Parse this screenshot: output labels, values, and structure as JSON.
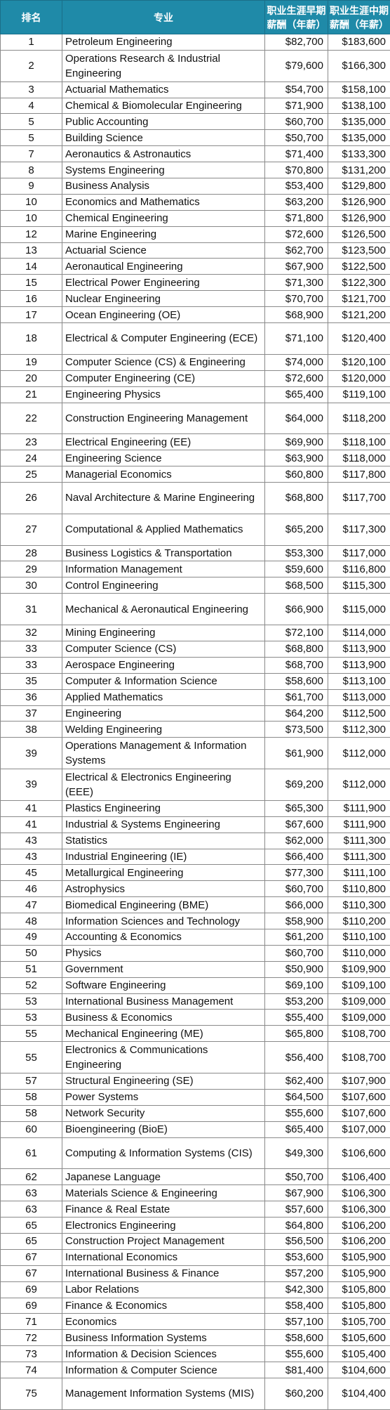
{
  "headers": {
    "rank": "排名",
    "major": "专业",
    "early": "职业生涯早期薪酬（年薪）",
    "mid": "职业生涯中期薪酬（年薪）"
  },
  "rows": [
    {
      "rank": "1",
      "major": "Petroleum Engineering",
      "early": "$82,700",
      "mid": "$183,600"
    },
    {
      "rank": "2",
      "major": "Operations Research & Industrial Engineering",
      "early": "$79,600",
      "mid": "$166,300",
      "tall": true
    },
    {
      "rank": "3",
      "major": "Actuarial Mathematics",
      "early": "$54,700",
      "mid": "$158,100"
    },
    {
      "rank": "4",
      "major": "Chemical & Biomolecular Engineering",
      "early": "$71,900",
      "mid": "$138,100"
    },
    {
      "rank": "5",
      "major": "Public Accounting",
      "early": "$60,700",
      "mid": "$135,000"
    },
    {
      "rank": "5",
      "major": "Building Science",
      "early": "$50,700",
      "mid": "$135,000"
    },
    {
      "rank": "7",
      "major": "Aeronautics & Astronautics",
      "early": "$71,400",
      "mid": "$133,300"
    },
    {
      "rank": "8",
      "major": "Systems Engineering",
      "early": "$70,800",
      "mid": "$131,200"
    },
    {
      "rank": "9",
      "major": "Business Analysis",
      "early": "$53,400",
      "mid": "$129,800"
    },
    {
      "rank": "10",
      "major": "Economics and Mathematics",
      "early": "$63,200",
      "mid": "$126,900"
    },
    {
      "rank": "10",
      "major": "Chemical Engineering",
      "early": "$71,800",
      "mid": "$126,900"
    },
    {
      "rank": "12",
      "major": "Marine Engineering",
      "early": "$72,600",
      "mid": "$126,500"
    },
    {
      "rank": "13",
      "major": "Actuarial Science",
      "early": "$62,700",
      "mid": "$123,500"
    },
    {
      "rank": "14",
      "major": "Aeronautical Engineering",
      "early": "$67,900",
      "mid": "$122,500"
    },
    {
      "rank": "15",
      "major": "Electrical Power Engineering",
      "early": "$71,300",
      "mid": "$122,300"
    },
    {
      "rank": "16",
      "major": "Nuclear Engineering",
      "early": "$70,700",
      "mid": "$121,700"
    },
    {
      "rank": "17",
      "major": "Ocean Engineering (OE)",
      "early": "$68,900",
      "mid": "$121,200"
    },
    {
      "rank": "18",
      "major": "Electrical & Computer Engineering (ECE)",
      "early": "$71,100",
      "mid": "$120,400",
      "tall": true
    },
    {
      "rank": "19",
      "major": "Computer Science (CS) & Engineering",
      "early": "$74,000",
      "mid": "$120,100"
    },
    {
      "rank": "20",
      "major": "Computer Engineering (CE)",
      "early": "$72,600",
      "mid": "$120,000"
    },
    {
      "rank": "21",
      "major": "Engineering Physics",
      "early": "$65,400",
      "mid": "$119,100"
    },
    {
      "rank": "22",
      "major": "Construction Engineering Management",
      "early": "$64,000",
      "mid": "$118,200",
      "tall": true
    },
    {
      "rank": "23",
      "major": "Electrical Engineering (EE)",
      "early": "$69,900",
      "mid": "$118,100"
    },
    {
      "rank": "24",
      "major": "Engineering Science",
      "early": "$63,900",
      "mid": "$118,000"
    },
    {
      "rank": "25",
      "major": "Managerial Economics",
      "early": "$60,800",
      "mid": "$117,800"
    },
    {
      "rank": "26",
      "major": "Naval Architecture & Marine Engineering",
      "early": "$68,800",
      "mid": "$117,700",
      "tall": true
    },
    {
      "rank": "27",
      "major": "Computational & Applied Mathematics",
      "early": "$65,200",
      "mid": "$117,300",
      "tall": true
    },
    {
      "rank": "28",
      "major": "Business Logistics & Transportation",
      "early": "$53,300",
      "mid": "$117,000"
    },
    {
      "rank": "29",
      "major": "Information Management",
      "early": "$59,600",
      "mid": "$116,800"
    },
    {
      "rank": "30",
      "major": "Control Engineering",
      "early": "$68,500",
      "mid": "$115,300"
    },
    {
      "rank": "31",
      "major": "Mechanical & Aeronautical Engineering",
      "early": "$66,900",
      "mid": "$115,000",
      "tall": true
    },
    {
      "rank": "32",
      "major": "Mining Engineering",
      "early": "$72,100",
      "mid": "$114,000"
    },
    {
      "rank": "33",
      "major": "Computer Science (CS)",
      "early": "$68,800",
      "mid": "$113,900"
    },
    {
      "rank": "33",
      "major": "Aerospace Engineering",
      "early": "$68,700",
      "mid": "$113,900"
    },
    {
      "rank": "35",
      "major": "Computer & Information Science",
      "early": "$58,600",
      "mid": "$113,100"
    },
    {
      "rank": "36",
      "major": "Applied Mathematics",
      "early": "$61,700",
      "mid": "$113,000"
    },
    {
      "rank": "37",
      "major": "Engineering",
      "early": "$64,200",
      "mid": "$112,500"
    },
    {
      "rank": "38",
      "major": "Welding Engineering",
      "early": "$73,500",
      "mid": "$112,300"
    },
    {
      "rank": "39",
      "major": "Operations Management & Information Systems",
      "early": "$61,900",
      "mid": "$112,000",
      "tall": true
    },
    {
      "rank": "39",
      "major": "Electrical & Electronics Engineering (EEE)",
      "early": "$69,200",
      "mid": "$112,000",
      "tall": true
    },
    {
      "rank": "41",
      "major": "Plastics Engineering",
      "early": "$65,300",
      "mid": "$111,900"
    },
    {
      "rank": "41",
      "major": "Industrial & Systems Engineering",
      "early": "$67,600",
      "mid": "$111,900"
    },
    {
      "rank": "43",
      "major": "Statistics",
      "early": "$62,000",
      "mid": "$111,300"
    },
    {
      "rank": "43",
      "major": "Industrial Engineering (IE)",
      "early": "$66,400",
      "mid": "$111,300"
    },
    {
      "rank": "45",
      "major": "Metallurgical Engineering",
      "early": "$77,300",
      "mid": "$111,100"
    },
    {
      "rank": "46",
      "major": "Astrophysics",
      "early": "$60,700",
      "mid": "$110,800"
    },
    {
      "rank": "47",
      "major": "Biomedical Engineering (BME)",
      "early": "$66,000",
      "mid": "$110,300"
    },
    {
      "rank": "48",
      "major": "Information Sciences and Technology",
      "early": "$58,900",
      "mid": "$110,200"
    },
    {
      "rank": "49",
      "major": "Accounting & Economics",
      "early": "$61,200",
      "mid": "$110,100"
    },
    {
      "rank": "50",
      "major": "Physics",
      "early": "$60,700",
      "mid": "$110,000"
    },
    {
      "rank": "51",
      "major": "Government",
      "early": "$50,900",
      "mid": "$109,900"
    },
    {
      "rank": "52",
      "major": "Software Engineering",
      "early": "$69,100",
      "mid": "$109,100"
    },
    {
      "rank": "53",
      "major": "International Business Management",
      "early": "$53,200",
      "mid": "$109,000"
    },
    {
      "rank": "53",
      "major": "Business & Economics",
      "early": "$55,400",
      "mid": "$109,000"
    },
    {
      "rank": "55",
      "major": "Mechanical Engineering (ME)",
      "early": "$65,800",
      "mid": "$108,700"
    },
    {
      "rank": "55",
      "major": "Electronics & Communications Engineering",
      "early": "$56,400",
      "mid": "$108,700",
      "tall": true
    },
    {
      "rank": "57",
      "major": "Structural Engineering (SE)",
      "early": "$62,400",
      "mid": "$107,900"
    },
    {
      "rank": "58",
      "major": "Power Systems",
      "early": "$64,500",
      "mid": "$107,600"
    },
    {
      "rank": "58",
      "major": "Network Security",
      "early": "$55,600",
      "mid": "$107,600"
    },
    {
      "rank": "60",
      "major": "Bioengineering (BioE)",
      "early": "$65,400",
      "mid": "$107,000"
    },
    {
      "rank": "61",
      "major": "Computing & Information Systems (CIS)",
      "early": "$49,300",
      "mid": "$106,600",
      "tall": true
    },
    {
      "rank": "62",
      "major": "Japanese Language",
      "early": "$50,700",
      "mid": "$106,400"
    },
    {
      "rank": "63",
      "major": "Materials Science & Engineering",
      "early": "$67,900",
      "mid": "$106,300"
    },
    {
      "rank": "63",
      "major": "Finance & Real Estate",
      "early": "$57,600",
      "mid": "$106,300"
    },
    {
      "rank": "65",
      "major": "Electronics Engineering",
      "early": "$64,800",
      "mid": "$106,200"
    },
    {
      "rank": "65",
      "major": "Construction Project Management",
      "early": "$56,500",
      "mid": "$106,200"
    },
    {
      "rank": "67",
      "major": "International Economics",
      "early": "$53,600",
      "mid": "$105,900"
    },
    {
      "rank": "67",
      "major": "International Business & Finance",
      "early": "$57,200",
      "mid": "$105,900"
    },
    {
      "rank": "69",
      "major": "Labor Relations",
      "early": "$42,300",
      "mid": "$105,800"
    },
    {
      "rank": "69",
      "major": "Finance & Economics",
      "early": "$58,400",
      "mid": "$105,800"
    },
    {
      "rank": "71",
      "major": "Economics",
      "early": "$57,100",
      "mid": "$105,700"
    },
    {
      "rank": "72",
      "major": "Business Information Systems",
      "early": "$58,600",
      "mid": "$105,600"
    },
    {
      "rank": "73",
      "major": "Information & Decision Sciences",
      "early": "$55,600",
      "mid": "$105,400"
    },
    {
      "rank": "74",
      "major": "Information & Computer Science",
      "early": "$81,400",
      "mid": "$104,600"
    },
    {
      "rank": "75",
      "major": "Management Information Systems (MIS)",
      "early": "$60,200",
      "mid": "$104,400",
      "tall": true
    }
  ]
}
